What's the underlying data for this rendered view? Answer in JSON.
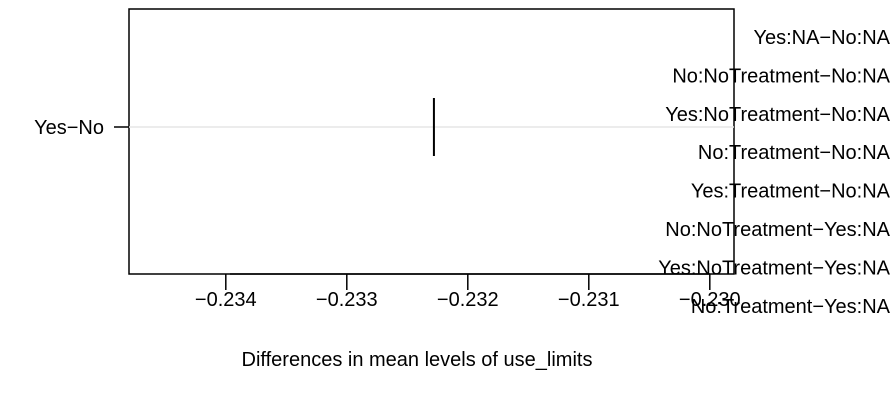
{
  "chart_data": {
    "type": "scatter",
    "xlabel": "Differences in mean levels of use_limits",
    "x_ticks": [
      -0.234,
      -0.233,
      -0.232,
      -0.231,
      -0.23
    ],
    "x_tick_labels": [
      "−0.234",
      "−0.233",
      "−0.232",
      "−0.231",
      "−0.230"
    ],
    "xlim": [
      -0.2348,
      -0.2298
    ],
    "categories": [
      "Yes−No"
    ],
    "estimates": [
      {
        "label": "Yes−No",
        "diff": -0.23228
      }
    ],
    "reference_line": true,
    "overlay_labels": [
      "Yes:NA−No:NA",
      "No:NoTreatment−No:NA",
      "Yes:NoTreatment−No:NA",
      "No:Treatment−No:NA",
      "Yes:Treatment−No:NA",
      "No:NoTreatment−Yes:NA",
      "Yes:NoTreatment−Yes:NA",
      "No:Treatment−Yes:NA"
    ]
  }
}
